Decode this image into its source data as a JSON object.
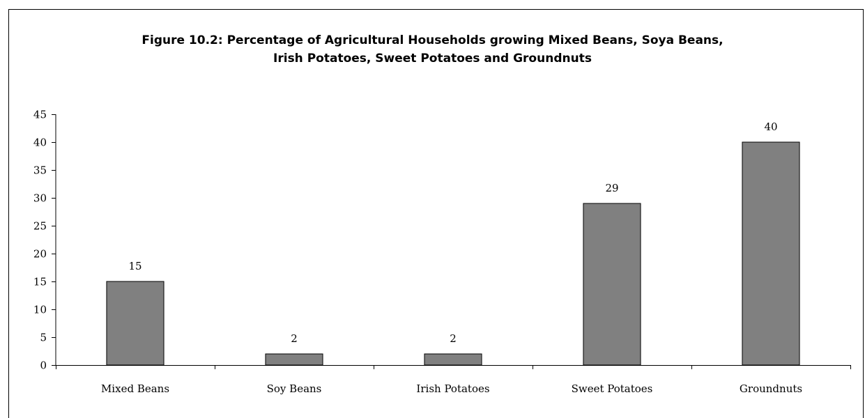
{
  "chart_data": {
    "type": "bar",
    "title_lines": [
      "Figure 10.2: Percentage of Agricultural Households growing Mixed Beans, Soya Beans,",
      "Irish Potatoes, Sweet Potatoes and Groundnuts"
    ],
    "categories": [
      "Mixed Beans",
      "Soy Beans",
      "Irish Potatoes",
      "Sweet Potatoes",
      "Groundnuts"
    ],
    "values": [
      15,
      2,
      2,
      29,
      40
    ],
    "data_labels": [
      "15",
      "2",
      "2",
      "29",
      "40"
    ],
    "y_ticks": [
      "0",
      "5",
      "10",
      "15",
      "20",
      "25",
      "30",
      "35",
      "40",
      "45"
    ],
    "ylim": [
      0,
      45
    ],
    "xlabel": "",
    "ylabel": "",
    "grid": false,
    "legend": "none",
    "bar_color": "#808080",
    "bar_edge_color": "#000000"
  }
}
